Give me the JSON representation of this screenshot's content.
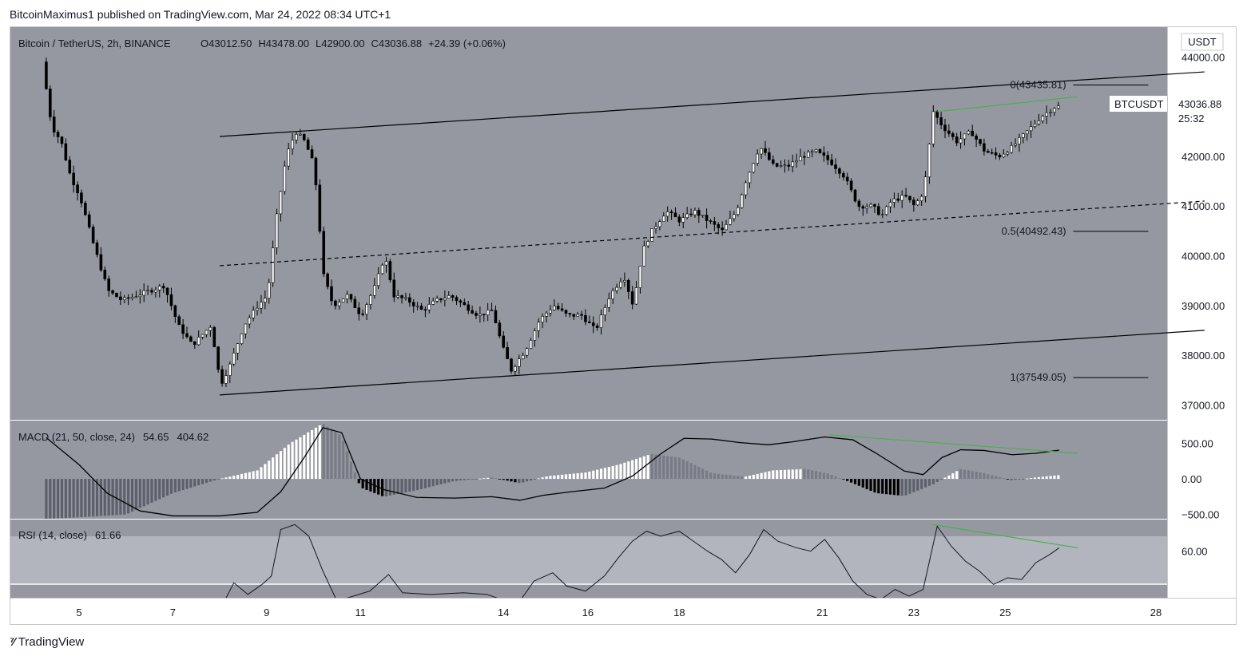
{
  "header": {
    "publish_line": "BitcoinMaximus1 published on TradingView.com, Mar 24, 2022 08:34 UTC+1"
  },
  "symbol": {
    "title": "Bitcoin / TetherUS, 2h, BINANCE",
    "ohlc": {
      "o_label": "O",
      "o": "43012.50",
      "h_label": "H",
      "h": "43478.00",
      "l_label": "L",
      "l": "42900.00",
      "c_label": "C",
      "c": "43036.88",
      "change": "+24.39 (+0.06%)"
    },
    "currency_badge": "USDT",
    "ticker_label": "BTCUSDT",
    "last_price": "43036.88",
    "countdown": "25:32"
  },
  "colors": {
    "pane_bg": "#9598a1",
    "rsi_band": "#b2b5be",
    "candle": "#ffffff",
    "wick": "#000000",
    "trendline": "#000000",
    "divergence": "#4caf50",
    "hist_up_strong": "#ffffff",
    "hist_up_weak": "#787b86",
    "hist_down_strong": "#000000",
    "hist_down_weak": "#5d606b"
  },
  "fib_labels": [
    {
      "text": "0(43435.81)",
      "price": 43435.81
    },
    {
      "text": "0.5(40492.43)",
      "price": 40492.43
    },
    {
      "text": "1(37549.05)",
      "price": 37549.05
    }
  ],
  "indicators": {
    "macd": {
      "label": "MACD (21, 50, close, 24)",
      "v1": "54.65",
      "v2": "404.62",
      "ticks": [
        "500.00",
        "0.00",
        "−500.00"
      ]
    },
    "rsi": {
      "label": "RSI (14, close)",
      "v1": "61.66",
      "ticks": [
        "60.00"
      ]
    }
  },
  "price_axis": [
    "44000.00",
    "43000.00",
    "42000.00",
    "41000.00",
    "40000.00",
    "39000.00",
    "38000.00",
    "37000.00"
  ],
  "time_axis": [
    "5",
    "7",
    "9",
    "11",
    "14",
    "16",
    "18",
    "21",
    "23",
    "25",
    "28"
  ],
  "footer": {
    "brand": "TradingView"
  },
  "chart_data": {
    "type": "candlestick",
    "title": "Bitcoin / TetherUS, 2h, BINANCE",
    "ylim": [
      36700,
      44600
    ],
    "x_ticks": [
      "5",
      "7",
      "9",
      "11",
      "14",
      "16",
      "18",
      "21",
      "23",
      "25",
      "28"
    ],
    "price_path": [
      [
        4.3,
        43900
      ],
      [
        4.5,
        42600
      ],
      [
        4.7,
        42300
      ],
      [
        4.9,
        41600
      ],
      [
        5.1,
        41200
      ],
      [
        5.4,
        40200
      ],
      [
        5.7,
        39300
      ],
      [
        6.0,
        39100
      ],
      [
        6.3,
        39200
      ],
      [
        6.6,
        39300
      ],
      [
        6.9,
        39400
      ],
      [
        7.2,
        38600
      ],
      [
        7.5,
        38200
      ],
      [
        7.9,
        38600
      ],
      [
        8.1,
        37400
      ],
      [
        8.3,
        37800
      ],
      [
        8.6,
        38600
      ],
      [
        8.9,
        39000
      ],
      [
        9.1,
        39200
      ],
      [
        9.3,
        40800
      ],
      [
        9.5,
        42000
      ],
      [
        9.7,
        42500
      ],
      [
        9.9,
        42300
      ],
      [
        10.1,
        41800
      ],
      [
        10.3,
        39600
      ],
      [
        10.5,
        39000
      ],
      [
        10.8,
        39200
      ],
      [
        11.1,
        38800
      ],
      [
        11.4,
        39400
      ],
      [
        11.6,
        40000
      ],
      [
        11.8,
        39200
      ],
      [
        12.1,
        39100
      ],
      [
        12.4,
        38900
      ],
      [
        12.7,
        39100
      ],
      [
        13.0,
        39200
      ],
      [
        13.3,
        39000
      ],
      [
        13.6,
        38800
      ],
      [
        13.9,
        38900
      ],
      [
        14.1,
        38200
      ],
      [
        14.3,
        37700
      ],
      [
        14.6,
        38100
      ],
      [
        14.9,
        38700
      ],
      [
        15.2,
        39000
      ],
      [
        15.5,
        38800
      ],
      [
        15.8,
        38800
      ],
      [
        16.1,
        38500
      ],
      [
        16.4,
        39200
      ],
      [
        16.7,
        39600
      ],
      [
        16.9,
        39000
      ],
      [
        17.1,
        40100
      ],
      [
        17.3,
        40500
      ],
      [
        17.6,
        40900
      ],
      [
        17.9,
        40700
      ],
      [
        18.2,
        40900
      ],
      [
        18.5,
        40700
      ],
      [
        18.8,
        40500
      ],
      [
        19.1,
        40900
      ],
      [
        19.3,
        41500
      ],
      [
        19.6,
        42200
      ],
      [
        19.9,
        41800
      ],
      [
        20.2,
        41800
      ],
      [
        20.5,
        42000
      ],
      [
        20.8,
        42100
      ],
      [
        21.1,
        41900
      ],
      [
        21.4,
        41600
      ],
      [
        21.7,
        41000
      ],
      [
        22.0,
        41000
      ],
      [
        22.2,
        40800
      ],
      [
        22.4,
        41100
      ],
      [
        22.7,
        41200
      ],
      [
        22.9,
        41000
      ],
      [
        23.1,
        41300
      ],
      [
        23.3,
        42900
      ],
      [
        23.5,
        42600
      ],
      [
        23.8,
        42300
      ],
      [
        24.1,
        42500
      ],
      [
        24.4,
        42100
      ],
      [
        24.7,
        42000
      ],
      [
        25.0,
        42200
      ],
      [
        25.3,
        42500
      ],
      [
        25.6,
        42800
      ],
      [
        25.9,
        43000
      ]
    ],
    "channel": {
      "upper": [
        [
          8.0,
          42400
        ],
        [
          29.0,
          43700
        ]
      ],
      "middle": [
        [
          8.0,
          39800
        ],
        [
          29.0,
          41100
        ]
      ],
      "lower": [
        [
          8.0,
          37200
        ],
        [
          29.0,
          38500
        ]
      ]
    },
    "fib_levels": [
      {
        "label": "0",
        "price": 43435.81
      },
      {
        "label": "0.5",
        "price": 40492.43
      },
      {
        "label": "1",
        "price": 37549.05
      }
    ],
    "macd": {
      "params": "21, 50, close, 24",
      "histogram": 54.65,
      "signal": 404.62,
      "ylim": [
        -560,
        820
      ],
      "line_path": [
        [
          4.3,
          580
        ],
        [
          5.0,
          200
        ],
        [
          5.6,
          -200
        ],
        [
          6.3,
          -450
        ],
        [
          7.0,
          -520
        ],
        [
          8.0,
          -520
        ],
        [
          8.8,
          -470
        ],
        [
          9.3,
          -180
        ],
        [
          9.8,
          300
        ],
        [
          10.2,
          720
        ],
        [
          10.6,
          650
        ],
        [
          11.0,
          0
        ],
        [
          11.5,
          -150
        ],
        [
          12.2,
          -260
        ],
        [
          13.0,
          -270
        ],
        [
          13.8,
          -250
        ],
        [
          14.4,
          -300
        ],
        [
          14.9,
          -230
        ],
        [
          15.5,
          -180
        ],
        [
          16.2,
          -130
        ],
        [
          16.8,
          40
        ],
        [
          17.4,
          350
        ],
        [
          17.9,
          570
        ],
        [
          18.5,
          560
        ],
        [
          19.1,
          510
        ],
        [
          19.7,
          480
        ],
        [
          20.2,
          520
        ],
        [
          20.9,
          590
        ],
        [
          21.5,
          550
        ],
        [
          22.0,
          360
        ],
        [
          22.6,
          110
        ],
        [
          23.0,
          60
        ],
        [
          23.4,
          300
        ],
        [
          23.8,
          410
        ],
        [
          24.3,
          400
        ],
        [
          24.9,
          340
        ],
        [
          25.4,
          360
        ],
        [
          25.9,
          404
        ]
      ],
      "hist_path": [
        [
          4.3,
          -560
        ],
        [
          5.0,
          -540
        ],
        [
          6.0,
          -500
        ],
        [
          7.0,
          -200
        ],
        [
          8.0,
          0
        ],
        [
          8.8,
          120
        ],
        [
          9.5,
          500
        ],
        [
          10.2,
          780
        ],
        [
          10.6,
          600
        ],
        [
          11.0,
          -120
        ],
        [
          11.5,
          -250
        ],
        [
          12.2,
          -160
        ],
        [
          13.0,
          -30
        ],
        [
          13.8,
          20
        ],
        [
          14.4,
          -60
        ],
        [
          15.0,
          40
        ],
        [
          15.8,
          90
        ],
        [
          16.5,
          200
        ],
        [
          17.2,
          350
        ],
        [
          17.8,
          300
        ],
        [
          18.5,
          80
        ],
        [
          19.2,
          30
        ],
        [
          19.8,
          120
        ],
        [
          20.5,
          140
        ],
        [
          21.0,
          70
        ],
        [
          21.5,
          -60
        ],
        [
          22.0,
          -200
        ],
        [
          22.6,
          -240
        ],
        [
          23.2,
          -80
        ],
        [
          23.8,
          140
        ],
        [
          24.3,
          80
        ],
        [
          24.9,
          -20
        ],
        [
          25.4,
          20
        ],
        [
          25.9,
          54
        ]
      ],
      "divergence": [
        [
          21.0,
          620
        ],
        [
          26.3,
          360
        ]
      ]
    },
    "rsi": {
      "params": "14, close",
      "value": 61.66,
      "ylim": [
        32,
        79
      ],
      "band": [
        30,
        70
      ],
      "path": [
        [
          4.3,
          30
        ],
        [
          8.1,
          30
        ],
        [
          8.3,
          41
        ],
        [
          8.6,
          34
        ],
        [
          8.9,
          40
        ],
        [
          9.1,
          45
        ],
        [
          9.3,
          73
        ],
        [
          9.6,
          76
        ],
        [
          9.9,
          69
        ],
        [
          10.2,
          48
        ],
        [
          10.5,
          30
        ],
        [
          11.2,
          36
        ],
        [
          11.6,
          46
        ],
        [
          11.9,
          35
        ],
        [
          12.5,
          34
        ],
        [
          13.2,
          35
        ],
        [
          13.7,
          34
        ],
        [
          14.1,
          30
        ],
        [
          14.4,
          30
        ],
        [
          14.7,
          42
        ],
        [
          15.1,
          47
        ],
        [
          15.4,
          39
        ],
        [
          15.8,
          36
        ],
        [
          16.2,
          45
        ],
        [
          16.5,
          56
        ],
        [
          16.8,
          66
        ],
        [
          17.1,
          72
        ],
        [
          17.4,
          69
        ],
        [
          17.8,
          72
        ],
        [
          18.1,
          66
        ],
        [
          18.4,
          60
        ],
        [
          18.7,
          55
        ],
        [
          19.0,
          47
        ],
        [
          19.3,
          58
        ],
        [
          19.6,
          73
        ],
        [
          19.9,
          66
        ],
        [
          20.3,
          62
        ],
        [
          20.6,
          60
        ],
        [
          20.9,
          67
        ],
        [
          21.2,
          56
        ],
        [
          21.5,
          42
        ],
        [
          21.8,
          34
        ],
        [
          22.1,
          31
        ],
        [
          22.4,
          37
        ],
        [
          22.7,
          33
        ],
        [
          23.0,
          37
        ],
        [
          23.3,
          75
        ],
        [
          23.6,
          63
        ],
        [
          23.9,
          54
        ],
        [
          24.2,
          48
        ],
        [
          24.5,
          40
        ],
        [
          24.8,
          44
        ],
        [
          25.1,
          43
        ],
        [
          25.4,
          53
        ],
        [
          25.7,
          58
        ],
        [
          25.9,
          62
        ]
      ],
      "divergence": [
        [
          23.2,
          76
        ],
        [
          26.3,
          62
        ]
      ]
    }
  }
}
